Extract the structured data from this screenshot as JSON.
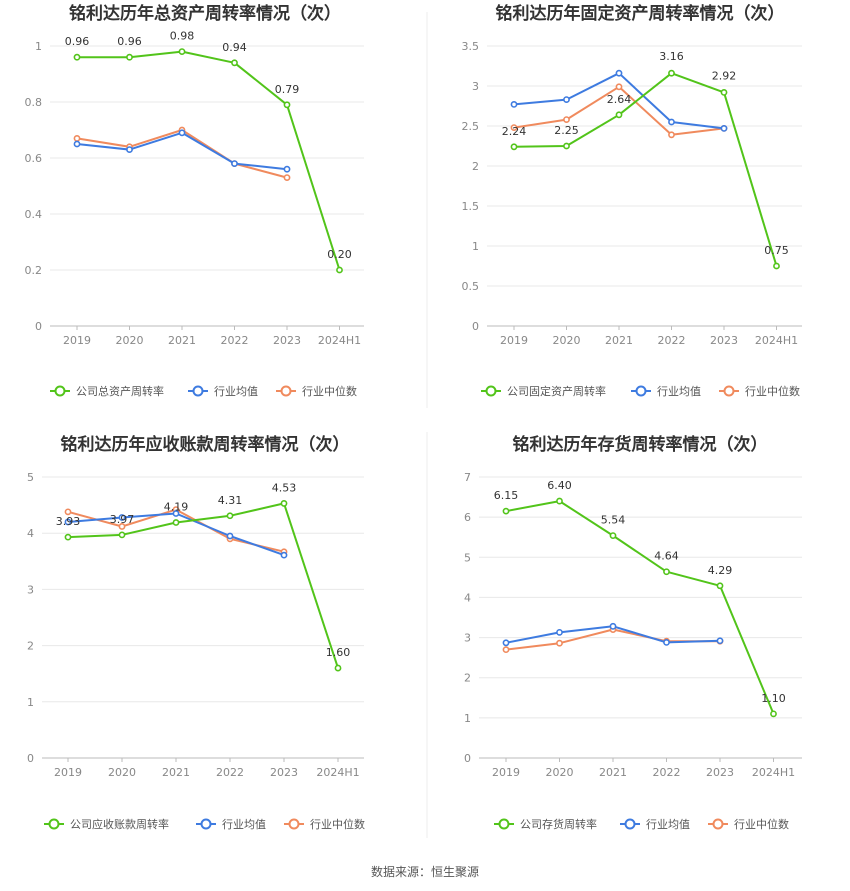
{
  "footer": {
    "source": "数据来源：恒生聚源"
  },
  "chart_data": [
    {
      "type": "line",
      "title": "铭利达历年总资产周转率情况（次）",
      "categories": [
        "2019",
        "2020",
        "2021",
        "2022",
        "2023",
        "2024H1"
      ],
      "ylim": [
        0,
        1
      ],
      "yticks": [
        "0",
        "0.2",
        "0.4",
        "0.6",
        "0.8",
        "1"
      ],
      "grid": true,
      "legend_position": "bottom",
      "series": [
        {
          "name": "公司总资产周转率",
          "color": "#52c41a",
          "values": [
            0.96,
            0.96,
            0.98,
            0.94,
            0.79,
            0.2
          ],
          "labels": [
            "0.96",
            "0.96",
            "0.98",
            "0.94",
            "0.79",
            "0.20"
          ]
        },
        {
          "name": "行业均值",
          "color": "#3e7be0",
          "values": [
            0.65,
            0.63,
            0.69,
            0.58,
            0.56,
            null
          ]
        },
        {
          "name": "行业中位数",
          "color": "#f08a5d",
          "values": [
            0.67,
            0.64,
            0.7,
            0.58,
            0.53,
            null
          ]
        }
      ]
    },
    {
      "type": "line",
      "title": "铭利达历年固定资产周转率情况（次）",
      "categories": [
        "2019",
        "2020",
        "2021",
        "2022",
        "2023",
        "2024H1"
      ],
      "ylim": [
        0,
        3.5
      ],
      "yticks": [
        "0",
        "0.5",
        "1",
        "1.5",
        "2",
        "2.5",
        "3",
        "3.5"
      ],
      "grid": true,
      "legend_position": "bottom",
      "series": [
        {
          "name": "公司固定资产周转率",
          "color": "#52c41a",
          "values": [
            2.24,
            2.25,
            2.64,
            3.16,
            2.92,
            0.75
          ],
          "labels": [
            "2.24",
            "2.25",
            "2.64",
            "3.16",
            "2.92",
            "0.75"
          ]
        },
        {
          "name": "行业均值",
          "color": "#3e7be0",
          "values": [
            2.77,
            2.83,
            3.16,
            2.55,
            2.47,
            null
          ]
        },
        {
          "name": "行业中位数",
          "color": "#f08a5d",
          "values": [
            2.48,
            2.58,
            2.99,
            2.39,
            2.47,
            null
          ]
        }
      ]
    },
    {
      "type": "line",
      "title": "铭利达历年应收账款周转率情况（次）",
      "categories": [
        "2019",
        "2020",
        "2021",
        "2022",
        "2023",
        "2024H1"
      ],
      "ylim": [
        0,
        5
      ],
      "yticks": [
        "0",
        "1",
        "2",
        "3",
        "4",
        "5"
      ],
      "grid": true,
      "legend_position": "bottom",
      "series": [
        {
          "name": "公司应收账款周转率",
          "color": "#52c41a",
          "values": [
            3.93,
            3.97,
            4.19,
            4.31,
            4.53,
            1.6
          ],
          "labels": [
            "3.93",
            "3.97",
            "4.19",
            "4.31",
            "4.53",
            "1.60"
          ]
        },
        {
          "name": "行业均值",
          "color": "#3e7be0",
          "values": [
            4.2,
            4.28,
            4.35,
            3.95,
            3.61,
            null
          ]
        },
        {
          "name": "行业中位数",
          "color": "#f08a5d",
          "values": [
            4.38,
            4.12,
            4.42,
            3.9,
            3.67,
            null
          ]
        }
      ]
    },
    {
      "type": "line",
      "title": "铭利达历年存货周转率情况（次）",
      "categories": [
        "2019",
        "2020",
        "2021",
        "2022",
        "2023",
        "2024H1"
      ],
      "ylim": [
        0,
        7
      ],
      "yticks": [
        "0",
        "1",
        "2",
        "3",
        "4",
        "5",
        "6",
        "7"
      ],
      "grid": true,
      "legend_position": "bottom",
      "series": [
        {
          "name": "公司存货周转率",
          "color": "#52c41a",
          "values": [
            6.15,
            6.4,
            5.54,
            4.64,
            4.29,
            1.1
          ],
          "labels": [
            "6.15",
            "6.40",
            "5.54",
            "4.64",
            "4.29",
            "1.10"
          ]
        },
        {
          "name": "行业均值",
          "color": "#3e7be0",
          "values": [
            2.87,
            3.13,
            3.28,
            2.88,
            2.92,
            null
          ]
        },
        {
          "name": "行业中位数",
          "color": "#f08a5d",
          "values": [
            2.7,
            2.86,
            3.2,
            2.91,
            2.91,
            null
          ]
        }
      ]
    }
  ]
}
